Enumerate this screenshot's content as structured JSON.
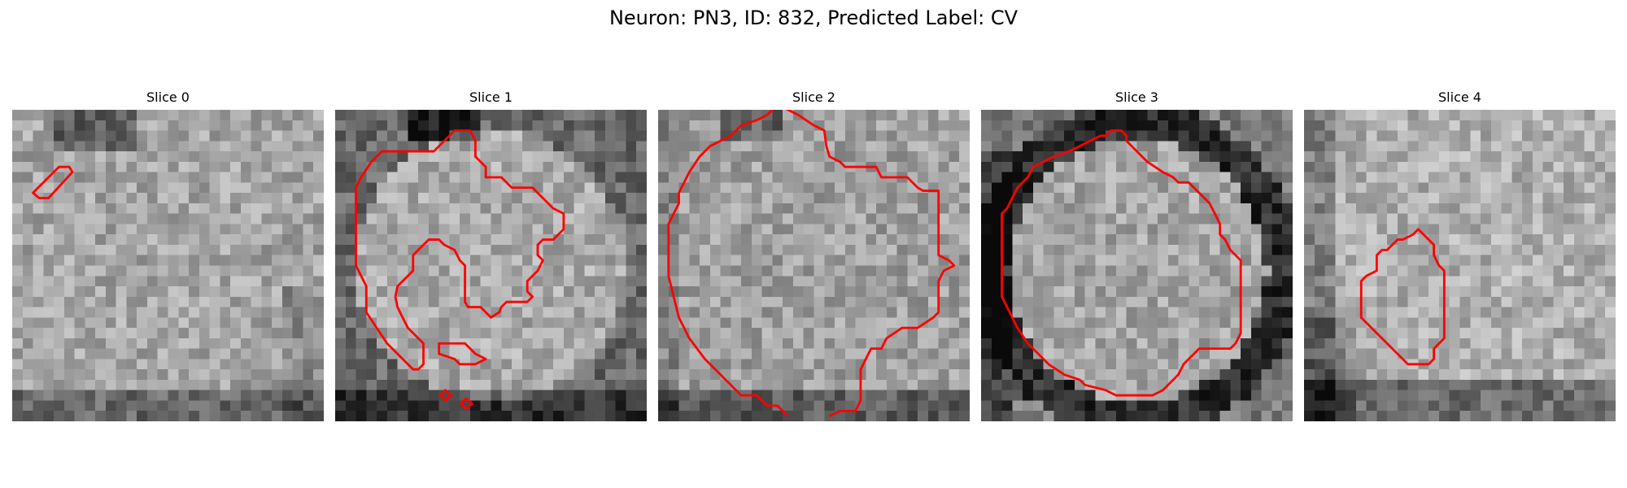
{
  "figure": {
    "title": "Neuron: PN3, ID: 832, Predicted Label: CV"
  },
  "panels": [
    {
      "title": "Slice 0",
      "seed": 11,
      "pattern": "blob0"
    },
    {
      "title": "Slice 1",
      "seed": 23,
      "pattern": "blob1"
    },
    {
      "title": "Slice 2",
      "seed": 37,
      "pattern": "blob2"
    },
    {
      "title": "Slice 3",
      "seed": 53,
      "pattern": "blob3"
    },
    {
      "title": "Slice 4",
      "seed": 71,
      "pattern": "blob4"
    }
  ],
  "colors": {
    "contour": "#ff0000"
  }
}
